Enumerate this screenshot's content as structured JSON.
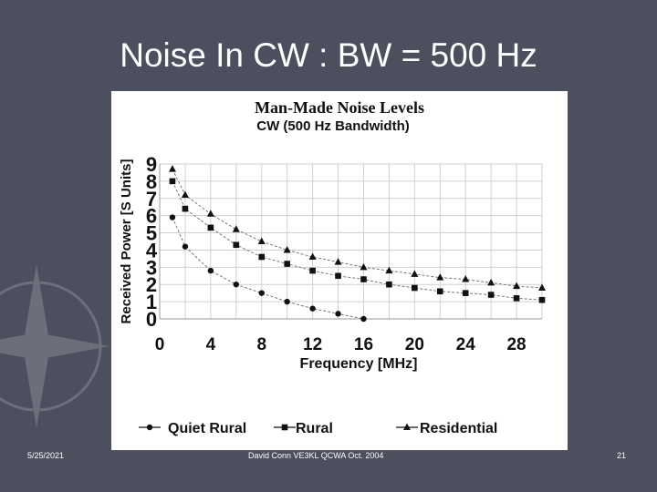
{
  "slide": {
    "title": "Noise In CW : BW = 500 Hz",
    "footer_date": "5/25/2021",
    "footer_center": "David Conn   VE3KL  QCWA Oct. 2004",
    "footer_page": "21"
  },
  "colors": {
    "background": "#4b4f5e",
    "chart_bg": "#ffffff",
    "grid": "#d0d0d0",
    "ink": "#111111"
  },
  "chart_data": {
    "type": "line",
    "title": "Man-Made Noise Levels",
    "subtitle": "CW  (500 Hz Bandwidth)",
    "xlabel": "Frequency [MHz]",
    "ylabel": "Received Power  [S Units]",
    "xlim": [
      0,
      30
    ],
    "ylim": [
      0,
      9
    ],
    "x_ticks": [
      "0",
      "4",
      "8",
      "12",
      "16",
      "20",
      "24",
      "28"
    ],
    "x_tick_values": [
      0,
      4,
      8,
      12,
      16,
      20,
      24,
      28
    ],
    "y_ticks": [
      "0",
      "1",
      "2",
      "3",
      "4",
      "5",
      "6",
      "7",
      "8",
      "9"
    ],
    "grid": true,
    "legend_position": "bottom",
    "series": [
      {
        "name": "Quiet Rural",
        "marker": "circle",
        "x": [
          1,
          2,
          4,
          6,
          8,
          10,
          12,
          14,
          16
        ],
        "y": [
          5.9,
          4.2,
          2.8,
          2.0,
          1.5,
          1.0,
          0.6,
          0.3,
          0.0
        ]
      },
      {
        "name": "Rural",
        "marker": "square",
        "x": [
          1,
          2,
          4,
          6,
          8,
          10,
          12,
          14,
          16,
          18,
          20,
          22,
          24,
          26,
          28,
          30
        ],
        "y": [
          8.0,
          6.4,
          5.3,
          4.3,
          3.6,
          3.2,
          2.8,
          2.5,
          2.3,
          2.0,
          1.8,
          1.6,
          1.5,
          1.4,
          1.2,
          1.1
        ]
      },
      {
        "name": "Residential",
        "marker": "triangle",
        "x": [
          1,
          2,
          4,
          6,
          8,
          10,
          12,
          14,
          16,
          18,
          20,
          22,
          24,
          26,
          28,
          30
        ],
        "y": [
          8.7,
          7.2,
          6.1,
          5.2,
          4.5,
          4.0,
          3.6,
          3.3,
          3.0,
          2.8,
          2.6,
          2.4,
          2.3,
          2.1,
          1.9,
          1.8
        ]
      }
    ]
  }
}
